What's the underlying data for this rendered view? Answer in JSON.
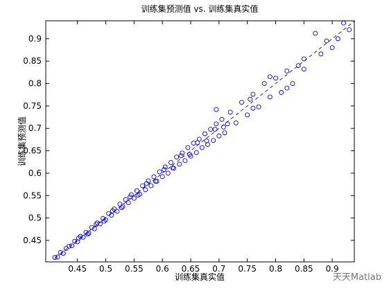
{
  "chart_data": {
    "type": "scatter",
    "title": "训练集预测值 vs. 训练集真实值",
    "x_label": "训练集真实值",
    "y_label": "训练集预测值",
    "watermark": "天天Matlab",
    "xlim": [
      0.394,
      0.939
    ],
    "ylim": [
      0.402,
      0.94
    ],
    "xticks": [
      0.45,
      0.5,
      0.55,
      0.6,
      0.65,
      0.7,
      0.75,
      0.8,
      0.85,
      0.9
    ],
    "yticks": [
      0.45,
      0.5,
      0.55,
      0.6,
      0.65,
      0.7,
      0.75,
      0.8,
      0.85,
      0.9
    ],
    "grid": false,
    "reference_line": {
      "x": [
        0.41,
        0.94
      ],
      "y": [
        0.41,
        0.94
      ],
      "color": "#000000"
    },
    "series": [
      {
        "color": "#0000ff",
        "x": [
          0.41,
          0.415,
          0.42,
          0.425,
          0.43,
          0.435,
          0.44,
          0.445,
          0.45,
          0.455,
          0.46,
          0.465,
          0.47,
          0.475,
          0.48,
          0.485,
          0.49,
          0.495,
          0.5,
          0.505,
          0.51,
          0.515,
          0.52,
          0.525,
          0.53,
          0.535,
          0.54,
          0.545,
          0.55,
          0.555,
          0.56,
          0.565,
          0.57,
          0.575,
          0.58,
          0.585,
          0.59,
          0.595,
          0.6,
          0.605,
          0.61,
          0.615,
          0.62,
          0.625,
          0.63,
          0.635,
          0.64,
          0.645,
          0.65,
          0.655,
          0.66,
          0.665,
          0.67,
          0.675,
          0.68,
          0.685,
          0.69,
          0.695,
          0.7,
          0.705,
          0.71,
          0.72,
          0.73,
          0.74,
          0.75,
          0.76,
          0.77,
          0.78,
          0.79,
          0.8,
          0.81,
          0.82,
          0.83,
          0.84,
          0.85,
          0.87,
          0.88,
          0.89,
          0.9,
          0.91,
          0.92,
          0.93,
          0.452,
          0.468,
          0.483,
          0.497,
          0.512,
          0.528,
          0.543,
          0.557,
          0.572,
          0.588,
          0.603,
          0.618,
          0.633,
          0.648,
          0.662,
          0.678,
          0.693,
          0.708,
          0.715,
          0.76,
          0.79,
          0.82,
          0.85,
          0.695,
          0.755
        ],
        "values": [
          0.412,
          0.413,
          0.423,
          0.421,
          0.432,
          0.437,
          0.438,
          0.448,
          0.447,
          0.459,
          0.457,
          0.468,
          0.466,
          0.479,
          0.476,
          0.489,
          0.487,
          0.499,
          0.496,
          0.51,
          0.506,
          0.52,
          0.515,
          0.531,
          0.526,
          0.541,
          0.534,
          0.552,
          0.544,
          0.561,
          0.553,
          0.572,
          0.563,
          0.583,
          0.572,
          0.592,
          0.582,
          0.603,
          0.592,
          0.614,
          0.6,
          0.624,
          0.611,
          0.636,
          0.62,
          0.645,
          0.628,
          0.657,
          0.638,
          0.667,
          0.646,
          0.676,
          0.657,
          0.688,
          0.664,
          0.698,
          0.673,
          0.71,
          0.683,
          0.72,
          0.69,
          0.736,
          0.712,
          0.758,
          0.73,
          0.776,
          0.748,
          0.8,
          0.77,
          0.812,
          0.78,
          0.828,
          0.8,
          0.84,
          0.832,
          0.912,
          0.866,
          0.895,
          0.88,
          0.9,
          0.935,
          0.92,
          0.455,
          0.464,
          0.486,
          0.493,
          0.516,
          0.523,
          0.547,
          0.551,
          0.577,
          0.582,
          0.608,
          0.612,
          0.639,
          0.642,
          0.668,
          0.672,
          0.698,
          0.703,
          0.71,
          0.745,
          0.815,
          0.79,
          0.855,
          0.742,
          0.765
        ]
      }
    ]
  }
}
